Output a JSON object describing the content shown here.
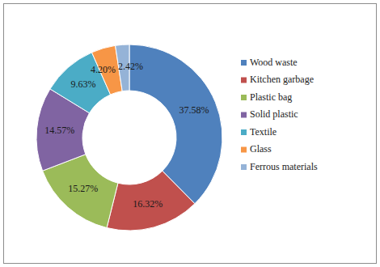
{
  "chart_data": {
    "type": "donut",
    "categories": [
      "Wood waste",
      "Kitchen garbage",
      "Plastic bag",
      "Solid plastic",
      "Textile",
      "Glass",
      "Ferrous materials"
    ],
    "values": [
      37.58,
      16.32,
      15.27,
      14.57,
      9.63,
      4.2,
      2.42
    ],
    "value_labels": [
      "37.58%",
      "16.32%",
      "15.27%",
      "14.57%",
      "9.63%",
      "4.20%",
      "2.42%"
    ],
    "colors": [
      "#4f81bd",
      "#c0504d",
      "#9bbb59",
      "#8064a2",
      "#4bacc6",
      "#f79646",
      "#95b3d7"
    ],
    "data_labels": true,
    "legend": "right"
  }
}
